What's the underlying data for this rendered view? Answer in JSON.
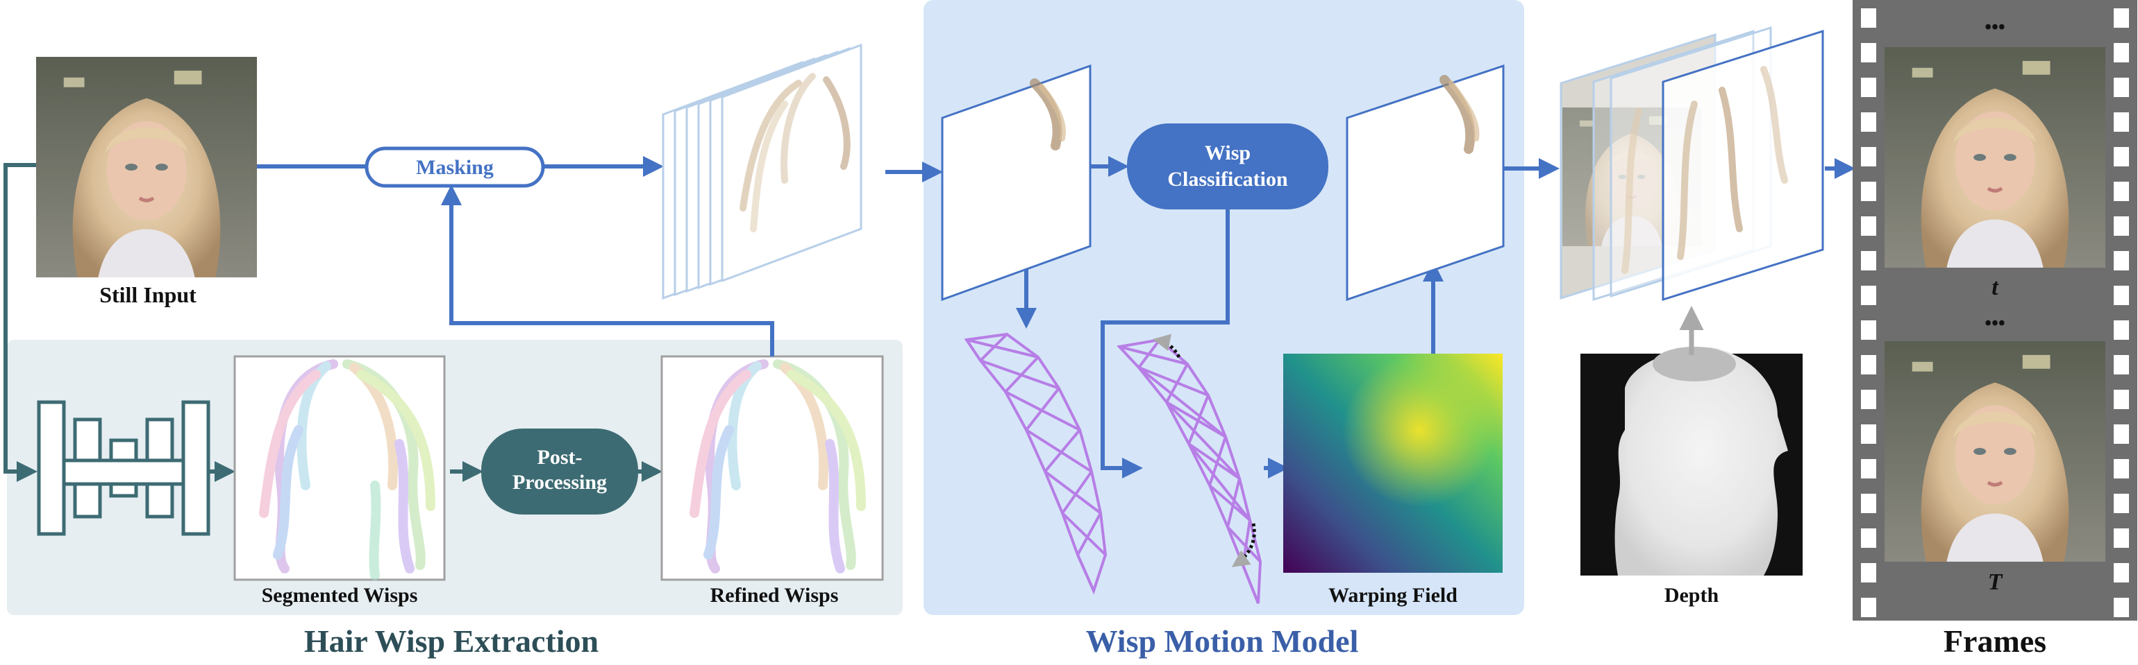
{
  "labels": {
    "still_input": "Still Input",
    "masking": "Masking",
    "post_processing_line1": "Post-",
    "post_processing_line2": "Processing",
    "segmented_wisps": "Segmented Wisps",
    "refined_wisps": "Refined Wisps",
    "hair_wisp_extraction": "Hair Wisp Extraction",
    "wisp_classification_line1": "Wisp",
    "wisp_classification_line2": "Classification",
    "warping_field": "Warping Field",
    "wisp_motion_model": "Wisp Motion Model",
    "depth": "Depth",
    "frames": "Frames",
    "frame_t_small": "t",
    "frame_t_big": "T",
    "ellipsis": "•••"
  },
  "colors": {
    "blue_arrow": "#4472c4",
    "teal": "#3d6b73",
    "extraction_panel": "#e6eef1",
    "motion_panel": "#d6e6f8",
    "wisp_class_box": "#4472c4",
    "post_proc_box": "#3d6b73",
    "mesh_purple": "#b77ee6",
    "film_gray": "#6e6e6e",
    "depth_arrow": "#a9a9a9",
    "title_extraction": "#2d4e57",
    "title_motion": "#3a5fa8"
  }
}
